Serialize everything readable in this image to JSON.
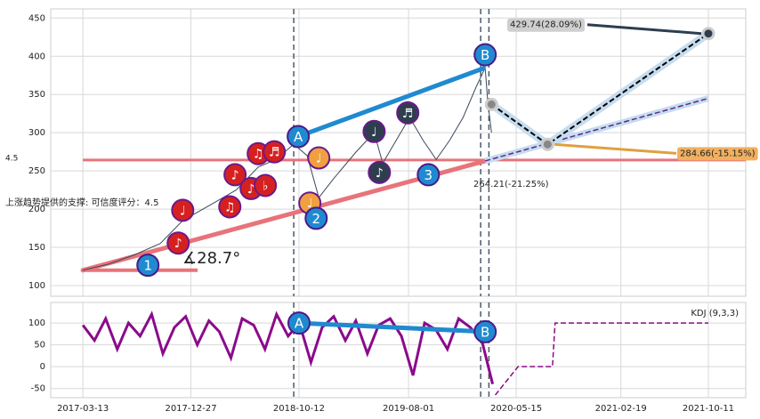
{
  "chart_data": [
    {
      "type": "line",
      "ylim": [
        86,
        462
      ],
      "yticks": [
        100,
        150,
        200,
        250,
        300,
        350,
        400,
        450
      ],
      "xlim": [
        "2016-12-17",
        "2022-01-19"
      ],
      "series": [
        {
          "name": null,
          "color": "#3a4a5a",
          "x": [
            "2017-03-13",
            "2017-05-20",
            "2017-07-28",
            "2017-10-06",
            "2017-12-05",
            "2018-02-15",
            "2018-04-27",
            "2018-06-25",
            "2018-08-12",
            "2018-09-28",
            "2018-11-03",
            "2018-12-04",
            "2019-01-13",
            "2019-03-14",
            "2019-05-01",
            "2019-05-24",
            "2019-06-29",
            "2019-08-04",
            "2019-09-09",
            "2019-10-14",
            "2019-11-19",
            "2019-12-25",
            "2020-01-29",
            "2020-02-22",
            "2020-02-29",
            "2020-03-10"
          ],
          "values": [
            120,
            128,
            140,
            155,
            185,
            205,
            225,
            255,
            265,
            285,
            270,
            215,
            240,
            275,
            300,
            260,
            290,
            320,
            290,
            265,
            290,
            320,
            360,
            385,
            340,
            300
          ]
        }
      ],
      "support": {
        "color": "#e8737a",
        "x": [
          "2017-03-13",
          "2020-02-22",
          "2021-10-11"
        ],
        "values": [
          120,
          263,
          345
        ]
      },
      "level": {
        "color": "#e8737a",
        "value": 264.21,
        "label": "264.21(-21.25%)"
      },
      "resistance": {
        "color": "#1f8ad0",
        "x": [
          "2018-10-10",
          "2020-02-22"
        ],
        "values": [
          295,
          385
        ]
      },
      "projection": {
        "color": "#000000",
        "x": [
          "2020-03-10",
          "2020-08-07",
          "2021-10-11"
        ],
        "values": [
          337,
          284.66,
          429.74
        ],
        "value_labels": [
          null,
          "284.66(-15.15%)",
          "429.74(28.09%)"
        ]
      },
      "vlines": [
        "2018-09-28",
        "2020-02-10",
        "2020-03-03"
      ],
      "waves": [
        {
          "label": "1",
          "x": "2017-09-03",
          "value": 126.6,
          "color": "#1f8ad0"
        },
        {
          "label": "A",
          "x": "2018-10-10",
          "value": 295,
          "color": "#1f8ad0"
        },
        {
          "label": "2",
          "x": "2018-11-27",
          "value": 188,
          "color": "#1f8ad0"
        },
        {
          "label": "3",
          "x": "2019-09-23",
          "value": 245,
          "color": "#1f8ad0"
        },
        {
          "label": "B",
          "x": "2020-02-22",
          "value": 402,
          "color": "#1f8ad0"
        }
      ],
      "signals": [
        {
          "symbol": "♪",
          "x": "2017-11-23",
          "value": 155.6,
          "color": "#d62020"
        },
        {
          "symbol": "♩",
          "x": "2017-12-05",
          "value": 198.5,
          "color": "#d62020"
        },
        {
          "symbol": "♫",
          "x": "2018-04-10",
          "value": 203,
          "color": "#d62020"
        },
        {
          "symbol": "♪",
          "x": "2018-04-24",
          "value": 245,
          "color": "#d62020"
        },
        {
          "symbol": "♪",
          "x": "2018-06-06",
          "value": 227,
          "color": "#d62020"
        },
        {
          "symbol": "♫",
          "x": "2018-06-25",
          "value": 272.6,
          "color": "#d62020"
        },
        {
          "symbol": "♭",
          "x": "2018-07-14",
          "value": 231,
          "color": "#d62020"
        },
        {
          "symbol": "♬",
          "x": "2018-08-07",
          "value": 275,
          "color": "#d62020"
        },
        {
          "symbol": "♩",
          "x": "2018-11-10",
          "value": 208,
          "color": "#f0a040"
        },
        {
          "symbol": "♩",
          "x": "2018-12-04",
          "value": 267,
          "color": "#f0a040"
        },
        {
          "symbol": "♩",
          "x": "2019-05-01",
          "value": 301.6,
          "color": "#2e3e4e"
        },
        {
          "symbol": "♪",
          "x": "2019-05-15",
          "value": 248,
          "color": "#2e3e4e"
        },
        {
          "symbol": "♬",
          "x": "2019-07-30",
          "value": 326,
          "color": "#2e3e4e"
        }
      ],
      "support_note": "上涨趋势提供的支撑: 可信度评分：4.5",
      "angle": "∡28.7°",
      "score": "4.5"
    },
    {
      "type": "line",
      "ylim": [
        -71,
        147
      ],
      "yticks": [
        -50,
        0,
        50,
        100
      ],
      "xlim": [
        "2016-12-17",
        "2022-01-19"
      ],
      "xticks": [
        "2017-03-13",
        "2017-12-27",
        "2018-10-12",
        "2019-08-01",
        "2020-05-15",
        "2021-02-19",
        "2021-10-11"
      ],
      "series": [
        {
          "name": "KDJ (9,3,3)",
          "color": "#8b0a8b",
          "x": [
            "2017-03-13",
            "2017-04-13",
            "2017-05-13",
            "2017-06-13",
            "2017-07-13",
            "2017-08-13",
            "2017-09-13",
            "2017-10-13",
            "2017-11-13",
            "2017-12-13",
            "2018-01-13",
            "2018-02-13",
            "2018-03-13",
            "2018-04-13",
            "2018-05-13",
            "2018-06-13",
            "2018-07-13",
            "2018-08-13",
            "2018-09-13",
            "2018-10-13",
            "2018-11-13",
            "2018-12-13",
            "2019-01-13",
            "2019-02-13",
            "2019-03-13",
            "2019-04-13",
            "2019-05-13",
            "2019-06-13",
            "2019-07-13",
            "2019-08-13",
            "2019-09-13",
            "2019-10-13",
            "2019-11-13",
            "2019-12-13",
            "2020-01-13",
            "2020-02-13",
            "2020-03-13"
          ],
          "values": [
            95,
            60,
            110,
            40,
            100,
            70,
            120,
            30,
            90,
            115,
            50,
            105,
            80,
            20,
            110,
            95,
            40,
            120,
            70,
            100,
            10,
            90,
            115,
            60,
            105,
            30,
            95,
            110,
            70,
            -20,
            100,
            85,
            40,
            110,
            90,
            60,
            -40
          ]
        },
        {
          "name": null,
          "color": "#8b0a8b",
          "dashed": true,
          "x": [
            "2020-03-20",
            "2020-05-20",
            "2020-08-20",
            "2020-08-27",
            "2021-10-11"
          ],
          "values": [
            -65,
            0,
            0,
            100,
            100
          ]
        }
      ],
      "waves": [
        {
          "label": "A",
          "x": "2018-10-12",
          "value": 100,
          "color": "#1f8ad0"
        },
        {
          "label": "B",
          "x": "2020-02-22",
          "value": 80,
          "color": "#1f8ad0"
        }
      ]
    }
  ]
}
